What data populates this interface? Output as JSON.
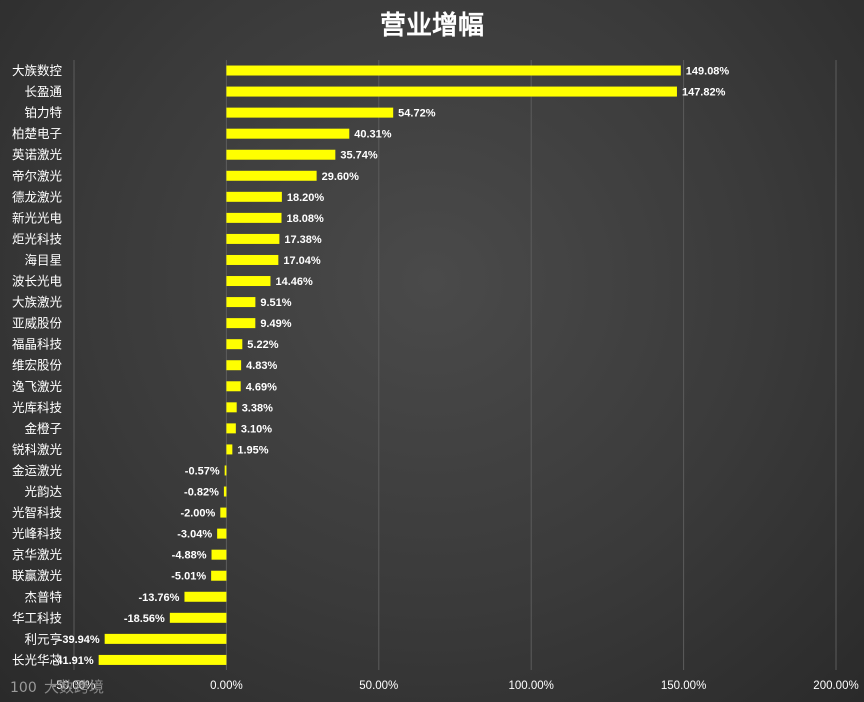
{
  "chart_data": {
    "type": "bar",
    "orientation": "horizontal",
    "title": "营业增幅",
    "categories": [
      "大族数控",
      "长盈通",
      "铂力特",
      "柏楚电子",
      "英诺激光",
      "帝尔激光",
      "德龙激光",
      "新光光电",
      "炬光科技",
      "海目星",
      "波长光电",
      "大族激光",
      "亚威股份",
      "福晶科技",
      "维宏股份",
      "逸飞激光",
      "光库科技",
      "金橙子",
      "锐科激光",
      "金运激光",
      "光韵达",
      "光智科技",
      "光峰科技",
      "京华激光",
      "联赢激光",
      "杰普特",
      "华工科技",
      "利元亨",
      "长光华芯"
    ],
    "values": [
      149.08,
      147.82,
      54.72,
      40.31,
      35.74,
      29.6,
      18.2,
      18.08,
      17.38,
      17.04,
      14.46,
      9.51,
      9.49,
      5.22,
      4.83,
      4.69,
      3.38,
      3.1,
      1.95,
      -0.57,
      -0.82,
      -2.0,
      -3.04,
      -4.88,
      -5.01,
      -13.76,
      -18.56,
      -39.94,
      -41.91
    ],
    "value_labels": [
      "149.08%",
      "147.82%",
      "54.72%",
      "40.31%",
      "35.74%",
      "29.60%",
      "18.20%",
      "18.08%",
      "17.38%",
      "17.04%",
      "14.46%",
      "9.51%",
      "9.49%",
      "5.22%",
      "4.83%",
      "4.69%",
      "3.38%",
      "3.10%",
      "1.95%",
      "-0.57%",
      "-0.82%",
      "-2.00%",
      "-3.04%",
      "-4.88%",
      "-5.01%",
      "-13.76%",
      "-18.56%",
      "-39.94%",
      "-41.91%"
    ],
    "xlim": [
      -50,
      200
    ],
    "xticks": [
      -50,
      0,
      50,
      100,
      150,
      200
    ],
    "xtick_labels": [
      "-50.00%",
      "0.00%",
      "50.00%",
      "100.00%",
      "150.00%",
      "200.00%"
    ],
    "grid": true,
    "bar_color": "#FFFF00"
  },
  "watermark": {
    "logo": "100",
    "text": "大数跨境"
  },
  "colors": {
    "background": "#3c3c3c",
    "text": "#ffffff",
    "gridline": "#5c5c5c"
  }
}
